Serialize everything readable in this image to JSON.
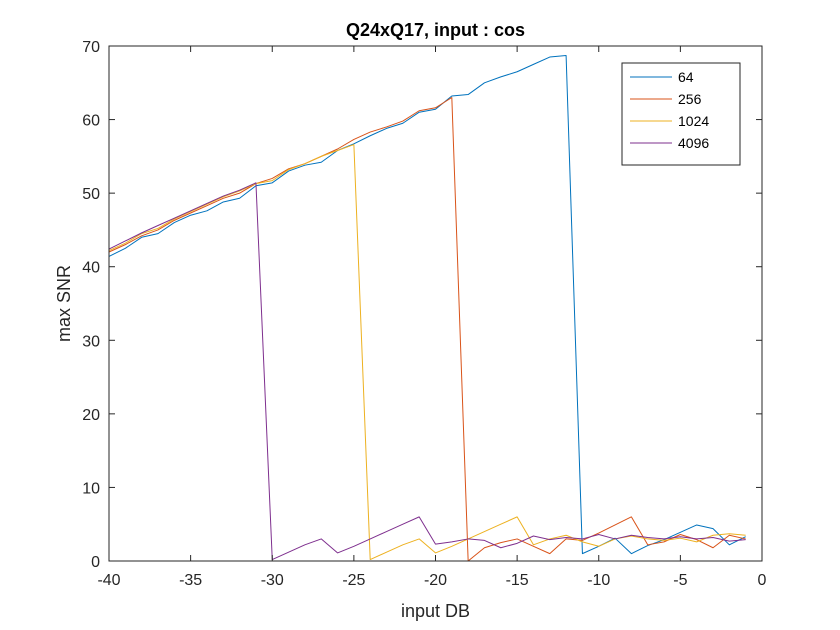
{
  "chart_data": {
    "type": "line",
    "title": "Q24xQ17, input : cos",
    "xlabel": "input DB",
    "ylabel": "max SNR",
    "xlim": [
      -40,
      0
    ],
    "ylim": [
      0,
      70
    ],
    "xticks": [
      -40,
      -35,
      -30,
      -25,
      -20,
      -15,
      -10,
      -5,
      0
    ],
    "yticks": [
      0,
      10,
      20,
      30,
      40,
      50,
      60,
      70
    ],
    "grid": false,
    "legend_position": "top-right",
    "series": [
      {
        "name": "64",
        "color": "#0072BD",
        "x": [
          -40,
          -39,
          -38,
          -37,
          -36,
          -35,
          -34,
          -33,
          -32,
          -31,
          -30,
          -29,
          -28,
          -27,
          -26,
          -25,
          -24,
          -23,
          -22,
          -21,
          -20,
          -19,
          -18,
          -17,
          -16,
          -15,
          -14,
          -13,
          -12,
          -11,
          -10,
          -9,
          -8,
          -7,
          -6,
          -5,
          -4,
          -3,
          -2,
          -1
        ],
        "y": [
          41.4,
          42.5,
          44.0,
          44.5,
          46.0,
          47.0,
          47.6,
          48.8,
          49.3,
          51.0,
          51.4,
          53.0,
          53.8,
          54.2,
          55.8,
          56.7,
          57.8,
          58.8,
          59.5,
          61.0,
          61.4,
          63.2,
          63.4,
          65.0,
          65.8,
          66.5,
          67.5,
          68.5,
          68.7,
          1.0,
          2.0,
          3.1,
          1.0,
          2.1,
          2.9,
          3.9,
          4.9,
          4.4,
          2.2,
          3.3
        ]
      },
      {
        "name": "256",
        "color": "#D95319",
        "x": [
          -40,
          -39,
          -38,
          -37,
          -36,
          -35,
          -34,
          -33,
          -32,
          -31,
          -30,
          -29,
          -28,
          -27,
          -26,
          -25,
          -24,
          -23,
          -22,
          -21,
          -20,
          -19,
          -18,
          -17,
          -16,
          -15,
          -14,
          -13,
          -12,
          -11,
          -10,
          -9,
          -8,
          -7,
          -6,
          -5,
          -4,
          -3,
          -2,
          -1
        ],
        "y": [
          42.0,
          43.0,
          44.2,
          45.0,
          46.3,
          47.3,
          48.3,
          49.3,
          50.0,
          51.3,
          52.0,
          53.3,
          54.0,
          55.0,
          56.0,
          57.3,
          58.3,
          59.0,
          59.8,
          61.2,
          61.6,
          63.0,
          0.0,
          1.8,
          2.5,
          3.0,
          2.0,
          1.0,
          3.0,
          2.8,
          3.8,
          4.9,
          6.0,
          2.2,
          2.6,
          3.6,
          2.9,
          1.8,
          3.5,
          3.0
        ]
      },
      {
        "name": "1024",
        "color": "#EDB120",
        "x": [
          -40,
          -39,
          -38,
          -37,
          -36,
          -35,
          -34,
          -33,
          -32,
          -31,
          -30,
          -29,
          -28,
          -27,
          -26,
          -25,
          -24,
          -23,
          -22,
          -21,
          -20,
          -19,
          -18,
          -17,
          -16,
          -15,
          -14,
          -13,
          -12,
          -11,
          -10,
          -9,
          -8,
          -7,
          -6,
          -5,
          -4,
          -3,
          -2,
          -1
        ],
        "y": [
          42.2,
          43.2,
          44.5,
          45.2,
          46.5,
          47.5,
          48.5,
          49.5,
          50.3,
          51.3,
          51.7,
          53.2,
          54.0,
          55.0,
          55.8,
          56.6,
          0.2,
          1.2,
          2.2,
          3.0,
          1.1,
          2.0,
          3.0,
          4.0,
          5.0,
          6.0,
          2.2,
          3.0,
          3.5,
          2.6,
          2.0,
          3.0,
          3.4,
          3.0,
          2.8,
          3.1,
          2.6,
          3.5,
          3.7,
          3.5
        ]
      },
      {
        "name": "4096",
        "color": "#7E2F8E",
        "x": [
          -40,
          -39,
          -38,
          -37,
          -36,
          -35,
          -34,
          -33,
          -32,
          -31,
          -30,
          -29,
          -28,
          -27,
          -26,
          -25,
          -24,
          -23,
          -22,
          -21,
          -20,
          -19,
          -18,
          -17,
          -16,
          -15,
          -14,
          -13,
          -12,
          -11,
          -10,
          -9,
          -8,
          -7,
          -6,
          -5,
          -4,
          -3,
          -2,
          -1
        ],
        "y": [
          42.4,
          43.5,
          44.6,
          45.6,
          46.6,
          47.6,
          48.6,
          49.6,
          50.4,
          51.4,
          0.2,
          1.2,
          2.2,
          3.0,
          1.1,
          2.0,
          3.0,
          4.0,
          5.0,
          6.0,
          2.3,
          2.6,
          3.0,
          2.8,
          1.8,
          2.4,
          3.4,
          2.9,
          3.2,
          3.0,
          3.6,
          3.0,
          3.5,
          3.2,
          3.0,
          3.3,
          3.0,
          3.2,
          2.7,
          2.9
        ]
      }
    ]
  }
}
